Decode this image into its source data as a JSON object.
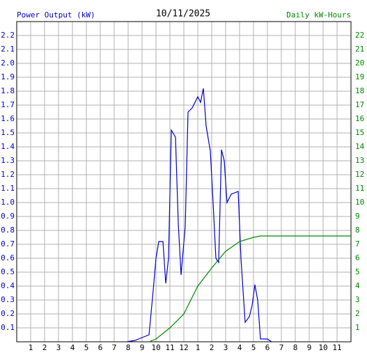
{
  "chart_data": {
    "type": "line",
    "title": "10/11/2025",
    "ylabel": "Power Output (kW)",
    "y2label": "Daily kW-Hours",
    "xlim": [
      0,
      24
    ],
    "xticks": [
      {
        "value": 1,
        "label": "1"
      },
      {
        "value": 2,
        "label": "2"
      },
      {
        "value": 3,
        "label": "3"
      },
      {
        "value": 4,
        "label": "4"
      },
      {
        "value": 5,
        "label": "5"
      },
      {
        "value": 6,
        "label": "6"
      },
      {
        "value": 7,
        "label": "7"
      },
      {
        "value": 8,
        "label": "8"
      },
      {
        "value": 9,
        "label": "9"
      },
      {
        "value": 10,
        "label": "10"
      },
      {
        "value": 11,
        "label": "11"
      },
      {
        "value": 12,
        "label": "12"
      },
      {
        "value": 13,
        "label": "1"
      },
      {
        "value": 14,
        "label": "2"
      },
      {
        "value": 15,
        "label": "3"
      },
      {
        "value": 16,
        "label": "4"
      },
      {
        "value": 17,
        "label": "5"
      },
      {
        "value": 18,
        "label": "6"
      },
      {
        "value": 19,
        "label": "7"
      },
      {
        "value": 20,
        "label": "8"
      },
      {
        "value": 21,
        "label": "9"
      },
      {
        "value": 22,
        "label": "10"
      },
      {
        "value": 23,
        "label": "11"
      }
    ],
    "ylim": [
      0,
      2.3
    ],
    "yticks": [
      0.1,
      0.2,
      0.3,
      0.4,
      0.5,
      0.6,
      0.7,
      0.8,
      0.9,
      {
        "value": 1,
        "label": "1.0"
      },
      1.1,
      1.2,
      1.3,
      1.4,
      1.5,
      1.6,
      1.7,
      1.8,
      1.9,
      {
        "value": 2,
        "label": "2.0"
      },
      2.1,
      2.2
    ],
    "y2lim": [
      0,
      23
    ],
    "y2ticks": [
      1,
      2,
      3,
      4,
      5,
      6,
      7,
      8,
      9,
      10,
      11,
      12,
      13,
      14,
      15,
      16,
      17,
      18,
      19,
      20,
      21,
      22
    ],
    "grid": true,
    "series": [
      {
        "name": "Power Output (kW)",
        "color": "#0000cc",
        "x": [
          7.9,
          8.5,
          9.0,
          9.5,
          9.8,
          10.0,
          10.2,
          10.5,
          10.7,
          10.9,
          11.1,
          11.4,
          11.6,
          11.8,
          12.1,
          12.3,
          12.6,
          13.0,
          13.2,
          13.4,
          13.6,
          13.9,
          14.1,
          14.3,
          14.5,
          14.7,
          14.9,
          15.1,
          15.4,
          15.9,
          16.1,
          16.4,
          16.7,
          16.9,
          17.1,
          17.3,
          17.5,
          18.0,
          18.3
        ],
        "values": [
          0,
          0.01,
          0.03,
          0.05,
          0.37,
          0.6,
          0.72,
          0.72,
          0.42,
          0.6,
          1.52,
          1.47,
          0.85,
          0.48,
          0.83,
          1.65,
          1.68,
          1.76,
          1.72,
          1.82,
          1.55,
          1.37,
          1.0,
          0.6,
          0.57,
          1.38,
          1.3,
          1.0,
          1.06,
          1.08,
          0.6,
          0.14,
          0.18,
          0.26,
          0.41,
          0.3,
          0.02,
          0.02,
          0
        ]
      },
      {
        "name": "Daily kW-Hours",
        "color": "#008800",
        "axis": "y2",
        "x": [
          9.5,
          10.0,
          11.0,
          12.0,
          13.0,
          14.0,
          15.0,
          16.0,
          17.0,
          17.5,
          24.0
        ],
        "values": [
          0,
          0.2,
          1,
          2,
          4,
          5.3,
          6.5,
          7.2,
          7.5,
          7.6,
          7.6
        ]
      }
    ]
  }
}
